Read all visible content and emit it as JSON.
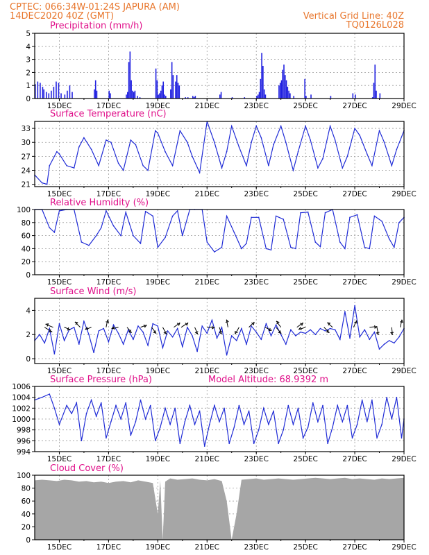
{
  "header": {
    "line1": "CPTEC:   066:34W-01:24S  JAPURA (AM)",
    "line2": "14DEC2020 40Z (GMT)",
    "grid_note": "Vertical Grid Line: 40Z",
    "code": "TQ0126L028"
  },
  "colors": {
    "header": "#e8762c",
    "panel_title": "#e0108a",
    "series": "#1f2bd6",
    "precip_bar": "#2020e0",
    "cloud_fill": "#a6a6a6"
  },
  "chart_data": [
    {
      "type": "bar",
      "title": "Precipitation (mm/h)",
      "xlabel": "",
      "ylabel": "",
      "ylim": [
        0,
        5
      ],
      "yticks": [
        "0",
        "1",
        "2",
        "3",
        "4",
        "5"
      ],
      "x_tick_labels": [
        "15DEC",
        "17DEC",
        "19DEC",
        "21DEC",
        "23DEC",
        "25DEC",
        "27DEC",
        "29DEC"
      ],
      "x_tick_days": [
        15,
        17,
        19,
        21,
        23,
        25,
        27,
        29
      ],
      "xlim_days": [
        14,
        29
      ],
      "grid": true,
      "x": [
        14.0,
        14.1,
        14.2,
        14.3,
        14.35,
        14.45,
        14.55,
        14.65,
        14.75,
        14.85,
        14.95,
        15.05,
        15.2,
        15.3,
        15.4,
        15.5,
        16.4,
        16.45,
        16.5,
        17.0,
        17.05,
        17.7,
        17.75,
        17.8,
        17.85,
        17.9,
        17.95,
        18.0,
        18.05,
        18.15,
        18.25,
        18.9,
        18.95,
        19.0,
        19.05,
        19.1,
        19.15,
        19.2,
        19.25,
        19.3,
        19.5,
        19.55,
        19.6,
        19.7,
        19.75,
        19.8,
        19.85,
        20.1,
        20.2,
        20.4,
        20.45,
        20.5,
        21.5,
        21.55,
        22.0,
        22.5,
        23.0,
        23.05,
        23.1,
        23.15,
        23.2,
        23.25,
        23.3,
        23.35,
        23.9,
        23.95,
        24.0,
        24.05,
        24.1,
        24.15,
        24.2,
        24.25,
        24.3,
        24.35,
        24.5,
        24.95,
        25.0,
        25.2,
        26.0,
        26.9,
        27.0,
        27.7,
        27.75,
        27.8,
        27.85,
        28.0
      ],
      "values": [
        1.1,
        1.3,
        1.2,
        0.9,
        0.7,
        0.5,
        0.4,
        0.6,
        0.9,
        1.3,
        1.2,
        0.4,
        0.3,
        0.6,
        1.0,
        0.5,
        0.7,
        1.4,
        0.6,
        0.6,
        0.4,
        0.3,
        0.5,
        2.8,
        3.6,
        1.4,
        0.6,
        0.5,
        0.6,
        0.2,
        0.1,
        2.3,
        1.4,
        0.3,
        0.4,
        0.6,
        1.0,
        1.3,
        0.3,
        0.2,
        0.7,
        2.8,
        1.8,
        1.3,
        1.8,
        1.2,
        1.0,
        0.1,
        0.1,
        0.2,
        0.1,
        0.2,
        0.3,
        0.5,
        0.1,
        0.1,
        0.2,
        0.3,
        0.5,
        1.5,
        3.5,
        2.5,
        0.7,
        0.3,
        1.0,
        1.2,
        1.4,
        2.2,
        2.6,
        1.8,
        1.4,
        0.9,
        0.6,
        0.4,
        0.2,
        1.5,
        0.2,
        0.3,
        0.2,
        0.4,
        0.3,
        0.1,
        1.2,
        2.6,
        0.6,
        0.4
      ]
    },
    {
      "type": "line",
      "title": "Surface Temperature (nC)",
      "xlabel": "",
      "ylabel": "",
      "ylim": [
        20.5,
        34.5
      ],
      "yticks": [
        "21",
        "24",
        "27",
        "30",
        "33"
      ],
      "x_tick_labels": [
        "15DEC",
        "17DEC",
        "19DEC",
        "21DEC",
        "23DEC",
        "25DEC",
        "27DEC",
        "29DEC"
      ],
      "xlim_days": [
        14,
        29
      ],
      "grid": true,
      "x": [
        14.0,
        14.3,
        14.5,
        14.6,
        14.9,
        15.0,
        15.3,
        15.6,
        15.8,
        16.0,
        16.3,
        16.6,
        16.9,
        17.1,
        17.4,
        17.6,
        17.9,
        18.1,
        18.4,
        18.6,
        18.9,
        19.0,
        19.3,
        19.6,
        19.9,
        20.2,
        20.4,
        20.7,
        21.0,
        21.3,
        21.6,
        21.8,
        22.0,
        22.3,
        22.6,
        22.8,
        23.0,
        23.2,
        23.5,
        23.7,
        24.0,
        24.2,
        24.5,
        24.7,
        25.0,
        25.2,
        25.5,
        25.7,
        26.0,
        26.2,
        26.5,
        26.7,
        27.0,
        27.2,
        27.5,
        27.7,
        28.0,
        28.2,
        28.5,
        28.7,
        29.0
      ],
      "values": [
        23,
        21.3,
        21.0,
        25,
        28,
        27.5,
        25,
        24.5,
        29,
        31,
        28.5,
        25,
        30.5,
        30,
        25.5,
        24,
        30.5,
        29.5,
        25,
        24,
        32.5,
        32,
        28,
        25,
        32.5,
        30,
        27,
        23.5,
        34.5,
        30,
        24.5,
        28,
        33.5,
        29,
        25,
        30,
        33.5,
        31,
        25,
        29.5,
        33.5,
        30,
        24,
        28,
        33.5,
        30.5,
        24.5,
        26.5,
        33.5,
        30.5,
        24.5,
        27,
        33,
        31.5,
        27.5,
        25,
        32.5,
        30,
        25,
        28.5,
        32.5
      ]
    },
    {
      "type": "line",
      "title": "Relative Humidity (%)",
      "xlabel": "",
      "ylabel": "",
      "ylim": [
        0,
        100
      ],
      "yticks": [
        "0",
        "20",
        "40",
        "60",
        "80",
        "100"
      ],
      "x_tick_labels": [
        "15DEC",
        "17DEC",
        "19DEC",
        "21DEC",
        "23DEC",
        "25DEC",
        "27DEC",
        "29DEC"
      ],
      "xlim_days": [
        14,
        29
      ],
      "grid": true,
      "x": [
        14.0,
        14.3,
        14.6,
        14.8,
        15.0,
        15.3,
        15.6,
        15.9,
        16.2,
        16.5,
        16.7,
        16.9,
        17.2,
        17.5,
        17.7,
        18.0,
        18.3,
        18.5,
        18.8,
        19.0,
        19.3,
        19.6,
        19.8,
        20.0,
        20.3,
        20.5,
        20.8,
        21.0,
        21.3,
        21.6,
        21.8,
        22.1,
        22.4,
        22.6,
        22.8,
        23.1,
        23.4,
        23.6,
        23.8,
        24.1,
        24.4,
        24.6,
        24.8,
        25.1,
        25.4,
        25.6,
        25.8,
        26.1,
        26.4,
        26.6,
        26.8,
        27.1,
        27.4,
        27.6,
        27.8,
        28.1,
        28.4,
        28.6,
        28.8,
        29.0
      ],
      "values": [
        100,
        100,
        72,
        65,
        98,
        100,
        100,
        50,
        45,
        60,
        72,
        98,
        75,
        60,
        96,
        60,
        48,
        97,
        90,
        42,
        57,
        90,
        98,
        60,
        100,
        100,
        100,
        50,
        35,
        42,
        90,
        65,
        40,
        48,
        88,
        88,
        40,
        38,
        90,
        85,
        42,
        40,
        95,
        96,
        50,
        43,
        95,
        100,
        50,
        40,
        88,
        92,
        42,
        40,
        90,
        82,
        55,
        42,
        80,
        88
      ]
    },
    {
      "type": "line",
      "title": "Surface Wind (m/s)",
      "xlabel": "",
      "ylabel": "",
      "ylim": [
        -0.4,
        5
      ],
      "yticks": [
        "0",
        "2",
        "4"
      ],
      "x_tick_labels": [
        "15DEC",
        "17DEC",
        "19DEC",
        "21DEC",
        "23DEC",
        "25DEC",
        "27DEC",
        "29DEC"
      ],
      "xlim_days": [
        14,
        29
      ],
      "grid": true,
      "x": [
        14.0,
        14.2,
        14.4,
        14.6,
        14.8,
        15.0,
        15.2,
        15.4,
        15.6,
        15.8,
        16.0,
        16.2,
        16.4,
        16.6,
        16.8,
        17.0,
        17.2,
        17.4,
        17.6,
        17.8,
        18.0,
        18.2,
        18.4,
        18.6,
        18.8,
        19.0,
        19.2,
        19.4,
        19.6,
        19.8,
        20.0,
        20.2,
        20.4,
        20.6,
        20.8,
        21.0,
        21.2,
        21.4,
        21.6,
        21.8,
        22.0,
        22.2,
        22.4,
        22.6,
        22.8,
        23.0,
        23.2,
        23.4,
        23.6,
        23.8,
        24.0,
        24.2,
        24.4,
        24.6,
        24.8,
        25.0,
        25.2,
        25.4,
        25.6,
        25.8,
        26.0,
        26.2,
        26.4,
        26.6,
        26.8,
        27.0,
        27.2,
        27.4,
        27.6,
        27.8,
        28.0,
        28.2,
        28.4,
        28.6,
        28.8,
        29.0
      ],
      "values": [
        1.5,
        2.0,
        1.3,
        2.5,
        0.4,
        2.9,
        1.5,
        2.4,
        2.6,
        1.2,
        3.1,
        2.0,
        0.5,
        2.3,
        2.5,
        1.4,
        2.8,
        2.1,
        1.2,
        2.4,
        1.6,
        2.7,
        2.2,
        1.1,
        2.9,
        2.7,
        0.9,
        2.3,
        1.8,
        2.5,
        1.0,
        2.6,
        1.9,
        0.6,
        2.7,
        2.1,
        3.2,
        1.7,
        2.6,
        0.3,
        1.9,
        1.5,
        2.5,
        1.2,
        2.7,
        2.2,
        1.6,
        2.9,
        1.9,
        2.8,
        2.0,
        1.2,
        2.4,
        1.9,
        2.2,
        2.1,
        2.4,
        2.0,
        2.5,
        2.3,
        2.5,
        2.4,
        1.6,
        3.9,
        1.7,
        4.4,
        1.8,
        2.4,
        1.6,
        2.2,
        0.8,
        1.2,
        1.5,
        1.3,
        1.8,
        2.5
      ],
      "wind_vectors": [
        {
          "day": 14.4,
          "u": 1.0,
          "v": -0.6
        },
        {
          "day": 14.75,
          "u": -1.0,
          "v": 0.4
        },
        {
          "day": 15.2,
          "u": 0.8,
          "v": -0.3
        },
        {
          "day": 15.85,
          "u": -0.7,
          "v": 0.7
        },
        {
          "day": 16.3,
          "u": -0.8,
          "v": -0.3
        },
        {
          "day": 16.9,
          "u": 0.2,
          "v": 1.0
        },
        {
          "day": 17.4,
          "u": -0.9,
          "v": -0.2
        },
        {
          "day": 17.75,
          "u": 0.6,
          "v": -0.7
        },
        {
          "day": 18.3,
          "u": 0.8,
          "v": 0.3
        },
        {
          "day": 18.75,
          "u": 0.6,
          "v": -0.8
        },
        {
          "day": 19.2,
          "u": 0.5,
          "v": -0.9
        },
        {
          "day": 19.65,
          "u": 0.8,
          "v": 0.6
        },
        {
          "day": 19.95,
          "u": 0.9,
          "v": 0.6
        },
        {
          "day": 20.5,
          "u": 0.4,
          "v": -0.9
        },
        {
          "day": 21.0,
          "u": 1.0,
          "v": 0.0
        },
        {
          "day": 21.5,
          "u": 0.3,
          "v": -0.9
        },
        {
          "day": 21.85,
          "u": -0.2,
          "v": 1.0
        },
        {
          "day": 22.3,
          "u": -0.5,
          "v": -0.9
        },
        {
          "day": 22.7,
          "u": 0.7,
          "v": 0.7
        },
        {
          "day": 23.35,
          "u": 0.9,
          "v": -0.4
        },
        {
          "day": 23.8,
          "u": 0.7,
          "v": -0.8
        },
        {
          "day": 24.0,
          "u": -0.6,
          "v": 0.8
        },
        {
          "day": 24.65,
          "u": 0.8,
          "v": 0.6
        },
        {
          "day": 25.0,
          "u": -0.9,
          "v": -0.3
        },
        {
          "day": 25.75,
          "u": 0.7,
          "v": -0.7
        },
        {
          "day": 26.1,
          "u": -0.7,
          "v": 0.6
        },
        {
          "day": 26.95,
          "u": 0.4,
          "v": 0.9
        },
        {
          "day": 27.6,
          "u": 1.0,
          "v": 0.1
        },
        {
          "day": 27.9,
          "u": 0.2,
          "v": -1.0
        },
        {
          "day": 28.5,
          "u": 0.1,
          "v": -1.0
        },
        {
          "day": 28.85,
          "u": 0.2,
          "v": 1.0
        }
      ]
    },
    {
      "type": "line",
      "title": "Surface Pressure (hPa)",
      "annotation": "Model Altitude: 68.9392 m",
      "xlabel": "",
      "ylabel": "",
      "ylim": [
        994,
        1006
      ],
      "yticks": [
        "994",
        "996",
        "998",
        "1000",
        "1002",
        "1004",
        "1006"
      ],
      "x_tick_labels": [
        "15DEC",
        "17DEC",
        "19DEC",
        "21DEC",
        "23DEC",
        "25DEC",
        "27DEC",
        "29DEC"
      ],
      "xlim_days": [
        14,
        29
      ],
      "grid": true,
      "x": [
        14.0,
        14.3,
        14.6,
        14.8,
        15.0,
        15.3,
        15.5,
        15.7,
        15.9,
        16.1,
        16.3,
        16.5,
        16.7,
        16.9,
        17.1,
        17.3,
        17.5,
        17.7,
        17.9,
        18.1,
        18.3,
        18.5,
        18.7,
        18.9,
        19.1,
        19.3,
        19.5,
        19.7,
        19.9,
        20.1,
        20.3,
        20.5,
        20.7,
        20.9,
        21.1,
        21.3,
        21.5,
        21.7,
        21.9,
        22.1,
        22.3,
        22.5,
        22.7,
        22.9,
        23.1,
        23.3,
        23.5,
        23.7,
        23.9,
        24.1,
        24.3,
        24.5,
        24.7,
        24.9,
        25.1,
        25.3,
        25.5,
        25.7,
        25.9,
        26.1,
        26.3,
        26.5,
        26.7,
        26.9,
        27.1,
        27.3,
        27.5,
        27.7,
        27.9,
        28.1,
        28.3,
        28.5,
        28.7,
        28.9,
        29.0
      ],
      "values": [
        1003.5,
        1004.0,
        1004.6,
        1002.0,
        999.0,
        1002.5,
        1001.0,
        1003.0,
        996.0,
        1001.0,
        1003.5,
        1000.5,
        1003.0,
        996.5,
        999.5,
        1002.5,
        1000.0,
        1003.0,
        997.0,
        999.5,
        1003.5,
        1000.0,
        1002.5,
        996.0,
        998.5,
        1002.0,
        999.0,
        1002.0,
        995.5,
        999.5,
        1002.5,
        999.0,
        1001.5,
        995.0,
        999.0,
        1002.5,
        999.5,
        1002.0,
        995.5,
        998.5,
        1002.5,
        999.0,
        1001.5,
        995.5,
        998.0,
        1002.0,
        999.0,
        1001.5,
        995.5,
        998.0,
        1002.5,
        999.0,
        1002.0,
        996.5,
        998.5,
        1003.0,
        999.5,
        1002.5,
        995.5,
        998.5,
        1002.5,
        999.5,
        1002.5,
        996.5,
        999.0,
        1003.5,
        999.5,
        1003.5,
        996.5,
        999.0,
        1004.0,
        1000.0,
        1004.0,
        996.5,
        1000.0
      ]
    },
    {
      "type": "area",
      "title": "Cloud Cover (%)",
      "xlabel": "",
      "ylabel": "",
      "ylim": [
        0,
        100
      ],
      "yticks": [
        "0",
        "20",
        "40",
        "60",
        "80",
        "100"
      ],
      "x_tick_labels": [
        "15DEC",
        "17DEC",
        "19DEC",
        "21DEC",
        "23DEC",
        "25DEC",
        "27DEC",
        "29DEC"
      ],
      "xlim_days": [
        14,
        29
      ],
      "grid": true,
      "x": [
        14.0,
        14.3,
        14.6,
        14.9,
        15.2,
        15.5,
        15.8,
        16.1,
        16.4,
        16.7,
        17.0,
        17.3,
        17.6,
        17.9,
        18.2,
        18.5,
        18.8,
        19.0,
        19.1,
        19.2,
        19.3,
        19.5,
        19.8,
        20.1,
        20.4,
        20.7,
        21.0,
        21.3,
        21.6,
        21.8,
        22.0,
        22.2,
        22.4,
        22.7,
        23.0,
        23.3,
        23.6,
        23.9,
        24.2,
        24.5,
        24.8,
        25.1,
        25.4,
        25.7,
        26.0,
        26.3,
        26.6,
        26.9,
        27.2,
        27.5,
        27.8,
        28.1,
        28.4,
        28.7,
        29.0
      ],
      "values": [
        92,
        93,
        92,
        91,
        93,
        92,
        90,
        91,
        89,
        90,
        88,
        90,
        91,
        89,
        92,
        90,
        88,
        40,
        92,
        0,
        90,
        95,
        93,
        94,
        95,
        93,
        92,
        94,
        91,
        60,
        0,
        40,
        93,
        94,
        95,
        93,
        94,
        95,
        94,
        93,
        94,
        95,
        96,
        95,
        94,
        95,
        96,
        94,
        95,
        94,
        93,
        95,
        94,
        95,
        96
      ]
    }
  ]
}
